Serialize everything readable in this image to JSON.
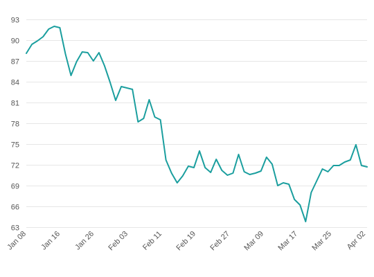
{
  "chart_data": {
    "type": "line",
    "title": "",
    "xlabel": "",
    "ylabel": "",
    "ylim": [
      63,
      94
    ],
    "y_ticks": [
      "93",
      "90",
      "87",
      "84",
      "81",
      "78",
      "75",
      "72",
      "69",
      "66",
      "63"
    ],
    "x_tick_labels": [
      "Jan 08",
      "Jan 16",
      "Jan 26",
      "Feb 03",
      "Feb 11",
      "Feb 19",
      "Feb 27",
      "Mar 09",
      "Mar 17",
      "Mar 25",
      "Apr 02"
    ],
    "grid": "horizontal",
    "series_color": "#1a9e9e",
    "values": [
      88.1,
      89.4,
      89.9,
      90.5,
      91.6,
      92.0,
      91.8,
      88.0,
      84.9,
      86.9,
      88.3,
      88.2,
      87.0,
      88.2,
      86.3,
      83.9,
      81.3,
      83.3,
      83.1,
      82.9,
      78.2,
      78.7,
      81.4,
      78.9,
      78.5,
      72.7,
      70.8,
      69.4,
      70.4,
      71.8,
      71.6,
      74.0,
      71.6,
      70.9,
      72.8,
      71.2,
      70.5,
      70.8,
      73.5,
      71.0,
      70.6,
      70.8,
      71.1,
      73.1,
      72.1,
      69.0,
      69.4,
      69.2,
      67.0,
      66.2,
      63.8,
      68.0,
      69.7,
      71.4,
      71.0,
      71.9,
      71.9,
      72.4,
      72.7,
      74.9,
      71.9,
      71.7
    ]
  }
}
